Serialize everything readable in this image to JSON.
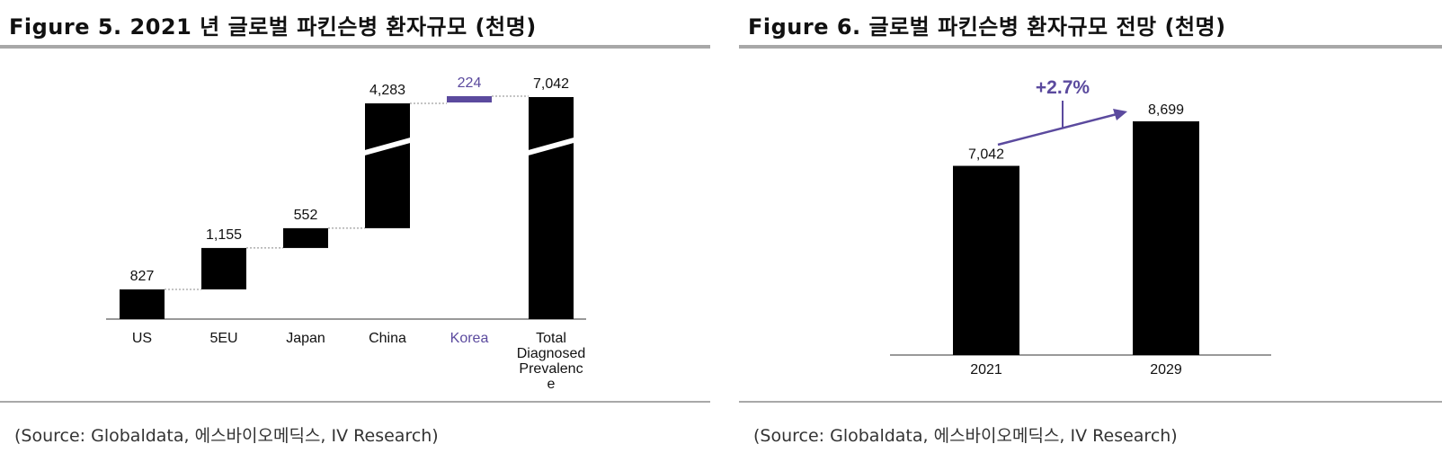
{
  "figure5": {
    "title": "Figure 5. 2021 년 글로벌 파킨슨병 환자규모 (천명)",
    "source": "(Source: Globaldata, 에스바이오메딕스, IV Research)"
  },
  "figure6": {
    "title": "Figure 6. 글로벌 파킨슨병 환자규모 전망 (천명)",
    "source": "(Source: Globaldata, 에스바이오메딕스, IV Research)",
    "growth_label": "+2.7%"
  },
  "colors": {
    "bar": "#000000",
    "highlight": "#5b4a9e",
    "rule": "#a8a8a8"
  },
  "chart_data": [
    {
      "type": "bar",
      "subtype": "waterfall",
      "title": "Figure 5. 2021 년 글로벌 파킨슨병 환자규모 (천명)",
      "categories": [
        "US",
        "5EU",
        "Japan",
        "China",
        "Korea",
        "Total Diagnosed Prevalence"
      ],
      "category_lines": [
        [
          "US"
        ],
        [
          "5EU"
        ],
        [
          "Japan"
        ],
        [
          "China"
        ],
        [
          "Korea"
        ],
        [
          "Total",
          "Diagnosed",
          "Prevalenc",
          "e"
        ]
      ],
      "values": [
        827,
        1155,
        552,
        4283,
        224,
        7042
      ],
      "value_labels": [
        "827",
        "1,155",
        "552",
        "4,283",
        "224",
        "7,042"
      ],
      "highlight_category": "Korea",
      "axis_break": true
    },
    {
      "type": "bar",
      "title": "Figure 6. 글로벌 파킨슨병 환자규모 전망 (천명)",
      "categories": [
        "2021",
        "2029"
      ],
      "values": [
        7042,
        8699
      ],
      "value_labels": [
        "7,042",
        "8,699"
      ],
      "annotation": "+2.7%"
    }
  ]
}
